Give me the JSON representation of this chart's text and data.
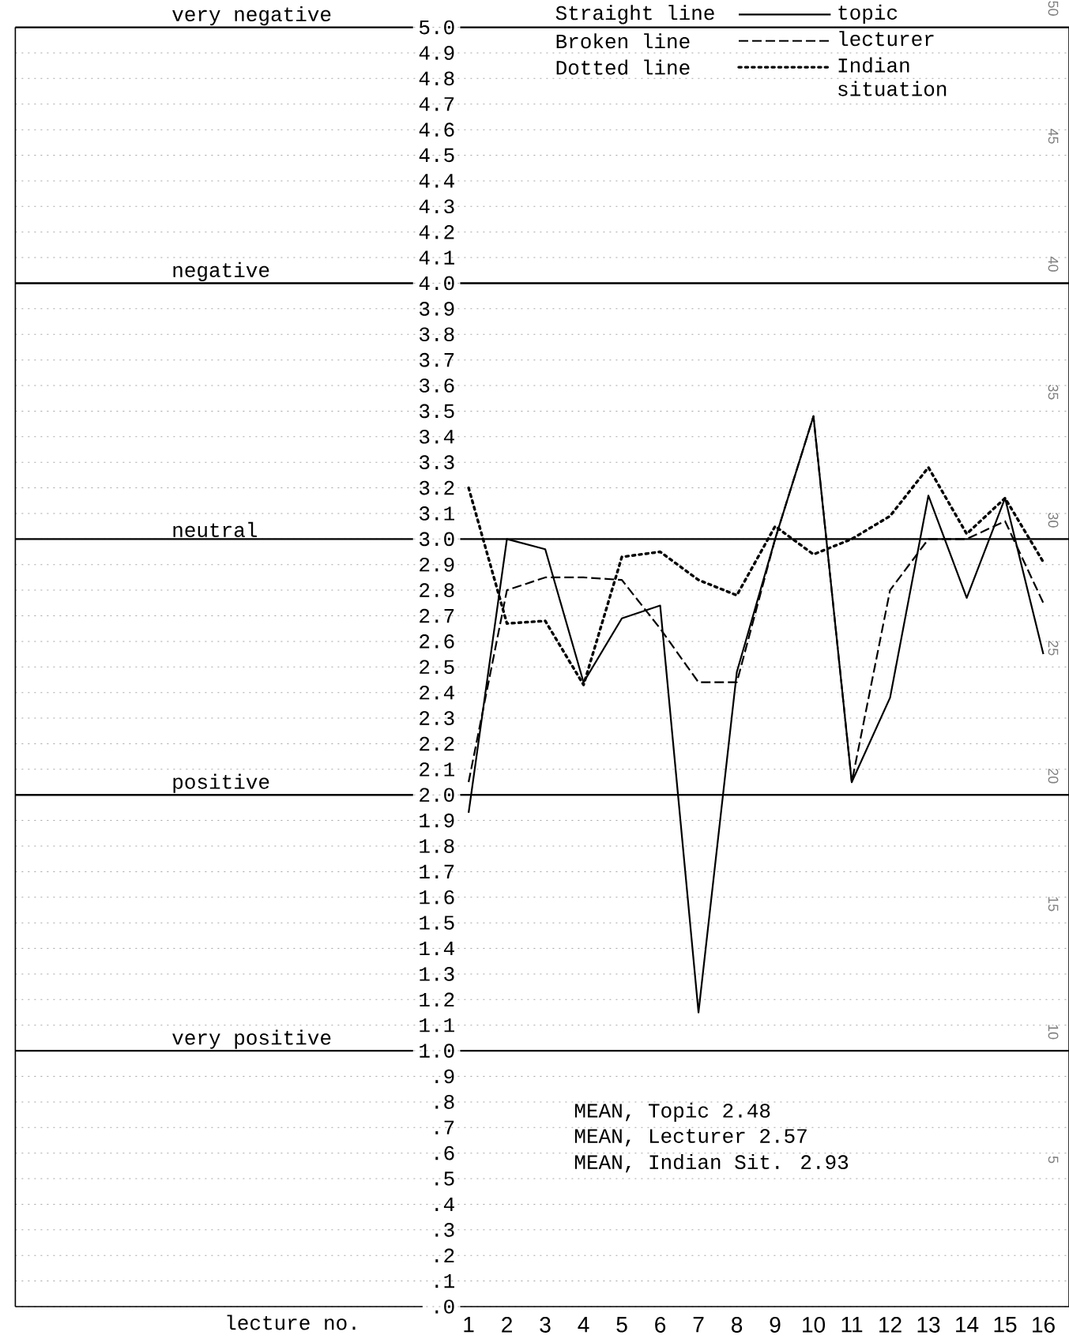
{
  "chart_data": {
    "type": "line",
    "categories": [
      "1",
      "2",
      "3",
      "4",
      "5",
      "6",
      "7",
      "8",
      "9",
      "10",
      "11",
      "12",
      "13",
      "14",
      "15",
      "16"
    ],
    "xlabel": "lecture no.",
    "series": [
      {
        "name": "topic",
        "color": "#000000",
        "line_style": "solid",
        "values": [
          1.93,
          3.0,
          2.96,
          2.44,
          2.69,
          2.74,
          1.15,
          2.48,
          3.0,
          3.48,
          2.05,
          2.38,
          3.17,
          2.77,
          3.16,
          2.55
        ]
      },
      {
        "name": "lecturer",
        "color": "#000000",
        "line_style": "dashed",
        "values": [
          2.05,
          2.8,
          2.85,
          2.85,
          2.84,
          2.65,
          2.44,
          2.44,
          3.0,
          3.48,
          2.05,
          2.8,
          3.0,
          3.0,
          3.07,
          2.75
        ]
      },
      {
        "name": "Indian situation",
        "color": "#000000",
        "line_style": "dotted",
        "values": [
          3.2,
          2.67,
          2.68,
          2.43,
          2.93,
          2.95,
          2.84,
          2.78,
          3.05,
          2.94,
          3.0,
          3.09,
          3.28,
          3.02,
          3.16,
          2.91
        ]
      }
    ],
    "ylim": [
      0,
      5
    ],
    "yticks": [
      {
        "value": 0,
        "label": ".0"
      },
      {
        "value": 0.1,
        "label": ".1"
      },
      {
        "value": 0.2,
        "label": ".2"
      },
      {
        "value": 0.3,
        "label": ".3"
      },
      {
        "value": 0.4,
        "label": ".4"
      },
      {
        "value": 0.5,
        "label": ".5"
      },
      {
        "value": 0.6,
        "label": ".6"
      },
      {
        "value": 0.7,
        "label": ".7"
      },
      {
        "value": 0.8,
        "label": ".8"
      },
      {
        "value": 0.9,
        "label": ".9"
      },
      {
        "value": 1,
        "label": "1.0"
      },
      1.1,
      1.2,
      1.3,
      1.4,
      1.5,
      1.6,
      1.7,
      1.8,
      1.9,
      {
        "value": 2,
        "label": "2.0"
      },
      2.1,
      2.2,
      2.3,
      2.4,
      2.5,
      2.6,
      2.7,
      2.8,
      2.9,
      {
        "value": 3,
        "label": "3.0"
      },
      3.1,
      3.2,
      3.3,
      3.4,
      3.5,
      3.6,
      3.7,
      3.8,
      3.9,
      {
        "value": 4,
        "label": "4.0"
      },
      4.1,
      4.2,
      4.3,
      4.4,
      4.5,
      4.6,
      4.7,
      4.8,
      4.9,
      {
        "value": 5,
        "label": "5.0"
      }
    ],
    "y2lim": [
      0,
      50
    ],
    "y2ticks": [
      5,
      10,
      15,
      20,
      25,
      30,
      35,
      40,
      45,
      50
    ],
    "grid": "y",
    "legend": "top",
    "marker": "none",
    "ref_lines": [
      {
        "axis": "y",
        "value": 5,
        "label": "very negative"
      },
      {
        "axis": "y",
        "value": 4,
        "label": "negative"
      },
      {
        "axis": "y",
        "value": 3,
        "label": "neutral"
      },
      {
        "axis": "y",
        "value": 2,
        "label": "positive"
      },
      {
        "axis": "y",
        "value": 1,
        "label": "very positive"
      }
    ],
    "annotations": [
      "Straight line",
      "Broken line",
      "Dotted line",
      "MEAN, Topic 2.48",
      "MEAN, Lecturer 2.57",
      "MEAN, Indian Sit. 2.93"
    ]
  }
}
